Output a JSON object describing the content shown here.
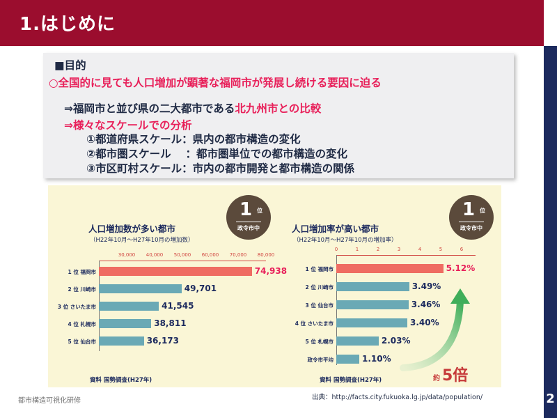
{
  "header": {
    "title": "1.はじめに"
  },
  "page_number": "2",
  "purpose": {
    "heading": "■目的",
    "goal": "○全国的に見ても人口増加が顕著な福岡市が発展し続ける要因に迫る",
    "point1_prefix": "⇒福岡市と並び県の二大都市である",
    "point1_highlight": "北九州市との比較",
    "point2": "⇒様々なスケールでの分析",
    "scales": [
      "①都道府県スケール：県内の都市構造の変化",
      "②都市圏スケール　 ：都市圏単位での都市構造の変化",
      "③市区町村スケール：市内の都市開発と都市構造の関係"
    ]
  },
  "chart_left": {
    "title": "人口増加数が多い都市",
    "subtitle": "（H22年10月〜H27年10月の増加数）",
    "source": "資料  国勢調査(H27年)",
    "badge": {
      "rank": "1",
      "suffix": "位",
      "category": "政令市中"
    }
  },
  "chart_right": {
    "title": "人口増加率が高い都市",
    "subtitle": "（H22年10月〜H27年10月の増加率）",
    "source": "資料  国勢調査(H27年)",
    "badge": {
      "rank": "1",
      "suffix": "位",
      "category": "政令市中"
    },
    "approx_prefix": "約",
    "approx_value": "5倍"
  },
  "chart_data": [
    {
      "type": "bar",
      "orientation": "horizontal",
      "title": "人口増加数が多い都市",
      "subtitle": "（H22年10月〜H27年10月の増加数）",
      "categories": [
        "1 位 福岡市",
        "2 位 川崎市",
        "3 位 さいたま市",
        "4 位 札幌市",
        "5 位 仙台市"
      ],
      "values": [
        74938,
        49701,
        41545,
        38811,
        36173
      ],
      "value_labels": [
        "74,938",
        "49,701",
        "41,545",
        "38,811",
        "36,173"
      ],
      "ticks": [
        "30,000",
        "40,000",
        "50,000",
        "60,000",
        "70,000",
        "80,000"
      ],
      "tick_values": [
        30000,
        40000,
        50000,
        60000,
        70000,
        80000
      ],
      "xlim": [
        20000,
        80000
      ],
      "highlight_color": "#ef6c62",
      "bar_color": "#6aa9b5"
    },
    {
      "type": "bar",
      "orientation": "horizontal",
      "title": "人口増加率が高い都市",
      "subtitle": "（H22年10月〜H27年10月の増加率）",
      "categories": [
        "1 位 福岡市",
        "2 位 川崎市",
        "3 位 仙台市",
        "4 位 さいたま市",
        "5 位 札幌市",
        "政令市平均"
      ],
      "values": [
        5.12,
        3.49,
        3.46,
        3.4,
        2.03,
        1.1
      ],
      "value_labels": [
        "5.12%",
        "3.49%",
        "3.46%",
        "3.40%",
        "2.03%",
        "1.10%"
      ],
      "ticks": [
        "0",
        "1",
        "2",
        "3",
        "4",
        "5",
        "6"
      ],
      "tick_values": [
        0,
        1,
        2,
        3,
        4,
        5,
        6
      ],
      "xlim": [
        0,
        6
      ],
      "highlight_color": "#ef6c62",
      "bar_color": "#6aa9b5"
    }
  ],
  "footer": {
    "left": "都市構造可視化研修",
    "source": "出典：http://facts.city.fukuoka.lg.jp/data/population/"
  }
}
